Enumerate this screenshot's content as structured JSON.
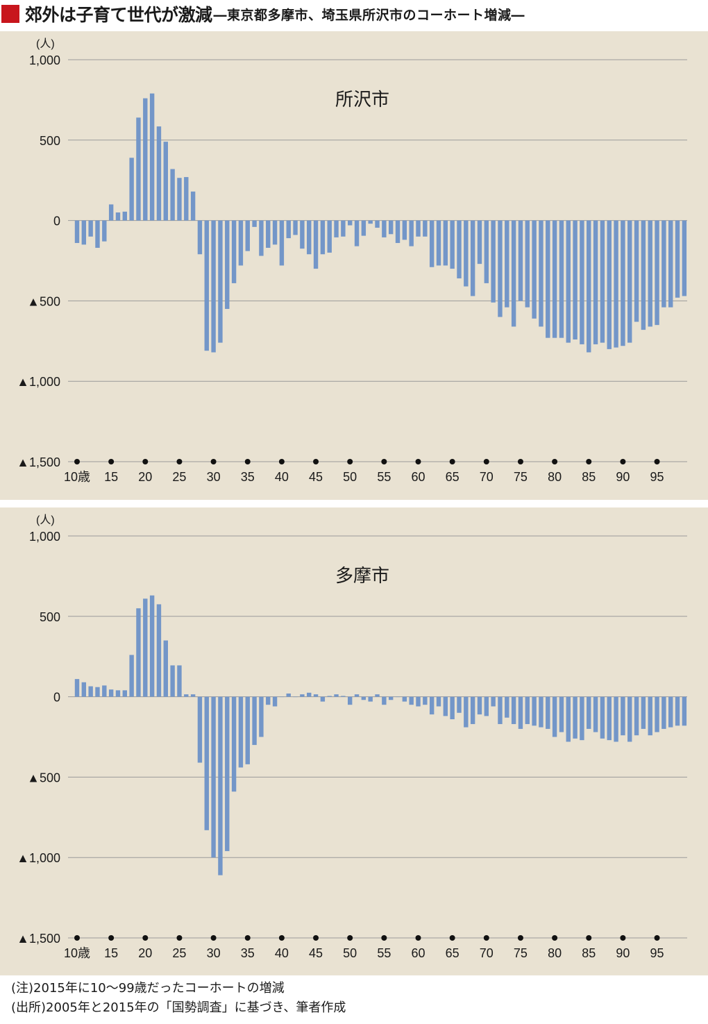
{
  "title": {
    "main": "郊外は子育て世代が激減",
    "sub": "―東京都多摩市、埼玉県所沢市のコーホート増減―"
  },
  "colors": {
    "bar": "#7396c8",
    "accent": "#c8161d",
    "panel": "#e9e2d2",
    "grid": "#9a9a9a"
  },
  "chart_data": [
    {
      "type": "bar",
      "title": "所沢市",
      "unit_label": "(人)",
      "ylim": [
        -1500,
        1000
      ],
      "y_ticks": [
        1000,
        500,
        0,
        -500,
        -1000,
        -1500
      ],
      "y_tick_labels": [
        "1,000",
        "500",
        "0",
        "▲500",
        "▲1,000",
        "▲1,500"
      ],
      "x_tick_values": [
        10,
        15,
        20,
        25,
        30,
        35,
        40,
        45,
        50,
        55,
        60,
        65,
        70,
        75,
        80,
        85,
        90,
        95
      ],
      "x_tick_labels": [
        "10歳",
        "15",
        "20",
        "25",
        "30",
        "35",
        "40",
        "45",
        "50",
        "55",
        "60",
        "65",
        "70",
        "75",
        "80",
        "85",
        "90",
        "95"
      ],
      "x": [
        10,
        11,
        12,
        13,
        14,
        15,
        16,
        17,
        18,
        19,
        20,
        21,
        22,
        23,
        24,
        25,
        26,
        27,
        28,
        29,
        30,
        31,
        32,
        33,
        34,
        35,
        36,
        37,
        38,
        39,
        40,
        41,
        42,
        43,
        44,
        45,
        46,
        47,
        48,
        49,
        50,
        51,
        52,
        53,
        54,
        55,
        56,
        57,
        58,
        59,
        60,
        61,
        62,
        63,
        64,
        65,
        66,
        67,
        68,
        69,
        70,
        71,
        72,
        73,
        74,
        75,
        76,
        77,
        78,
        79,
        80,
        81,
        82,
        83,
        84,
        85,
        86,
        87,
        88,
        89,
        90,
        91,
        92,
        93,
        94,
        95,
        96,
        97,
        98,
        99
      ],
      "values": [
        -140,
        -150,
        -100,
        -170,
        -130,
        100,
        50,
        55,
        390,
        640,
        760,
        790,
        585,
        490,
        320,
        265,
        270,
        180,
        -210,
        -810,
        -820,
        -760,
        -550,
        -390,
        -280,
        -190,
        -40,
        -220,
        -170,
        -150,
        -280,
        -110,
        -90,
        -175,
        -210,
        -300,
        -210,
        -200,
        -105,
        -100,
        -30,
        -160,
        -95,
        -20,
        -45,
        -105,
        -85,
        -140,
        -120,
        -160,
        -100,
        -100,
        -290,
        -280,
        -280,
        -300,
        -360,
        -410,
        -470,
        -270,
        -390,
        -510,
        -600,
        -540,
        -660,
        -500,
        -540,
        -610,
        -660,
        -730,
        -730,
        -730,
        -760,
        -740,
        -770,
        -820,
        -770,
        -760,
        -800,
        -790,
        -780,
        -760,
        -630,
        -680,
        -660,
        -650,
        -540,
        -540,
        -480,
        -470
      ]
    },
    {
      "type": "bar",
      "title": "多摩市",
      "unit_label": "(人)",
      "ylim": [
        -1500,
        1000
      ],
      "y_ticks": [
        1000,
        500,
        0,
        -500,
        -1000,
        -1500
      ],
      "y_tick_labels": [
        "1,000",
        "500",
        "0",
        "▲500",
        "▲1,000",
        "▲1,500"
      ],
      "x_tick_values": [
        10,
        15,
        20,
        25,
        30,
        35,
        40,
        45,
        50,
        55,
        60,
        65,
        70,
        75,
        80,
        85,
        90,
        95
      ],
      "x_tick_labels": [
        "10歳",
        "15",
        "20",
        "25",
        "30",
        "35",
        "40",
        "45",
        "50",
        "55",
        "60",
        "65",
        "70",
        "75",
        "80",
        "85",
        "90",
        "95"
      ],
      "x": [
        10,
        11,
        12,
        13,
        14,
        15,
        16,
        17,
        18,
        19,
        20,
        21,
        22,
        23,
        24,
        25,
        26,
        27,
        28,
        29,
        30,
        31,
        32,
        33,
        34,
        35,
        36,
        37,
        38,
        39,
        40,
        41,
        42,
        43,
        44,
        45,
        46,
        47,
        48,
        49,
        50,
        51,
        52,
        53,
        54,
        55,
        56,
        57,
        58,
        59,
        60,
        61,
        62,
        63,
        64,
        65,
        66,
        67,
        68,
        69,
        70,
        71,
        72,
        73,
        74,
        75,
        76,
        77,
        78,
        79,
        80,
        81,
        82,
        83,
        84,
        85,
        86,
        87,
        88,
        89,
        90,
        91,
        92,
        93,
        94,
        95,
        96,
        97,
        98,
        99
      ],
      "values": [
        110,
        90,
        65,
        60,
        70,
        45,
        40,
        40,
        260,
        550,
        610,
        630,
        575,
        350,
        195,
        195,
        15,
        15,
        -410,
        -830,
        -1000,
        -1110,
        -960,
        -590,
        -440,
        -420,
        -300,
        -250,
        -50,
        -60,
        0,
        20,
        0,
        15,
        25,
        15,
        -30,
        5,
        15,
        5,
        -50,
        15,
        -20,
        -30,
        15,
        -50,
        -20,
        0,
        -30,
        -50,
        -60,
        -50,
        -110,
        -60,
        -120,
        -140,
        -100,
        -190,
        -170,
        -110,
        -120,
        -60,
        -170,
        -130,
        -170,
        -200,
        -170,
        -180,
        -190,
        -200,
        -250,
        -220,
        -280,
        -260,
        -270,
        -200,
        -220,
        -260,
        -270,
        -280,
        -240,
        -280,
        -240,
        -200,
        -240,
        -220,
        -200,
        -190,
        -180,
        -180
      ]
    }
  ],
  "notes": [
    "(注)2015年に10～99歳だったコーホートの増減",
    "(出所)2005年と2015年の「国勢調査」に基づき、筆者作成"
  ]
}
